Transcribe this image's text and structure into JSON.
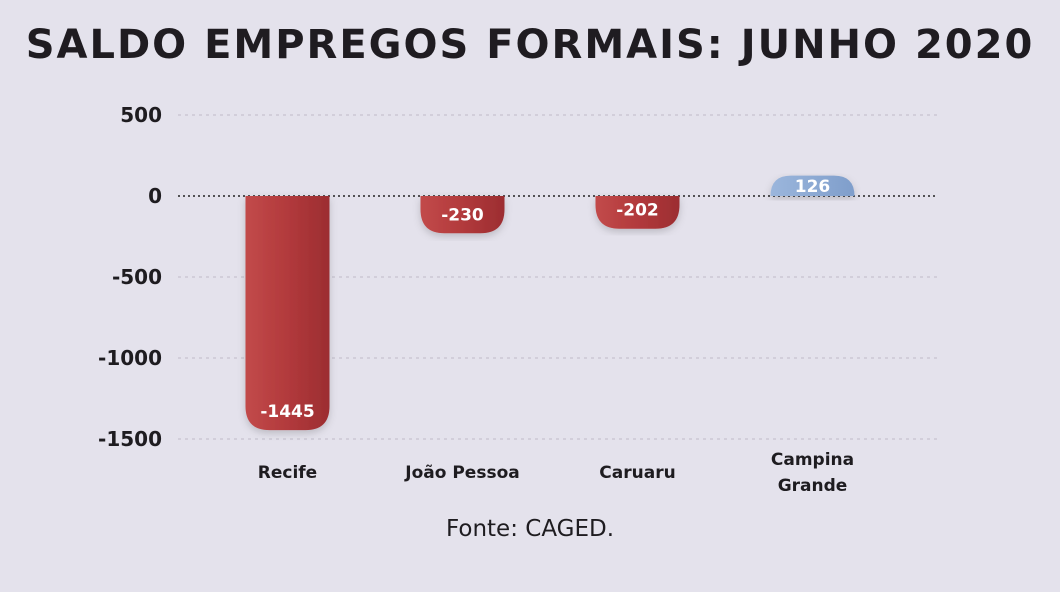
{
  "chart_data": {
    "type": "bar",
    "title": "SALDO EMPREGOS FORMAIS: JUNHO 2020",
    "categories": [
      [
        "Recife"
      ],
      [
        "João Pessoa"
      ],
      [
        "Caruaru"
      ],
      [
        "Campina",
        "Grande"
      ]
    ],
    "values": [
      -1445,
      -230,
      -202,
      126
    ],
    "value_labels": [
      "-1445",
      "-230",
      "-202",
      "126"
    ],
    "ylim": [
      -1500,
      500
    ],
    "yticks": [
      500,
      0,
      -500,
      -1000,
      -1500
    ],
    "ytick_labels": [
      "500",
      "0",
      "-500",
      "-1000",
      "-1500"
    ],
    "xlabel": "",
    "ylabel": "",
    "grid": true,
    "colors": {
      "negative": "#b13a3c",
      "positive": "#86a6d0",
      "grid": "#c6c3cf",
      "zero_line": "#222222"
    }
  },
  "source": "Fonte: CAGED."
}
